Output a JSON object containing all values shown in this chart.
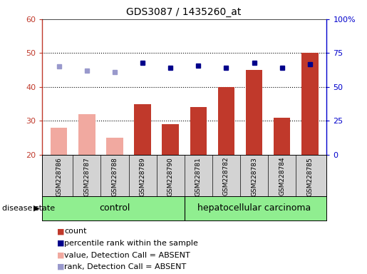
{
  "title": "GDS3087 / 1435260_at",
  "samples": [
    "GSM228786",
    "GSM228787",
    "GSM228788",
    "GSM228789",
    "GSM228790",
    "GSM228781",
    "GSM228782",
    "GSM228783",
    "GSM228784",
    "GSM228785"
  ],
  "count_values": [
    28,
    32,
    25,
    35,
    29,
    34,
    40,
    45,
    31,
    50
  ],
  "count_absent": [
    true,
    true,
    true,
    false,
    false,
    false,
    false,
    false,
    false,
    false
  ],
  "percentile_values": [
    65,
    62,
    61,
    68,
    64,
    66,
    64,
    68,
    64,
    67
  ],
  "percentile_absent": [
    true,
    true,
    true,
    false,
    false,
    false,
    false,
    false,
    false,
    false
  ],
  "ylim_left": [
    20,
    60
  ],
  "ylim_right": [
    0,
    100
  ],
  "yticks_left": [
    20,
    30,
    40,
    50,
    60
  ],
  "yticks_right": [
    0,
    25,
    50,
    75,
    100
  ],
  "ytick_labels_right": [
    "0",
    "25",
    "50",
    "75",
    "100%"
  ],
  "control_count": 5,
  "total_count": 10,
  "group_labels": [
    "control",
    "hepatocellular carcinoma"
  ],
  "bar_color_present": "#c0392b",
  "bar_color_absent": "#f1a9a0",
  "dot_color_present": "#00008B",
  "dot_color_absent": "#9999CC",
  "left_axis_color": "#c0392b",
  "right_axis_color": "#0000cc",
  "background_plot": "#ffffff",
  "background_labels": "#d3d3d3",
  "background_group": "#90EE90",
  "grid_color": "black",
  "figsize": [
    5.15,
    3.84
  ],
  "dpi": 100
}
